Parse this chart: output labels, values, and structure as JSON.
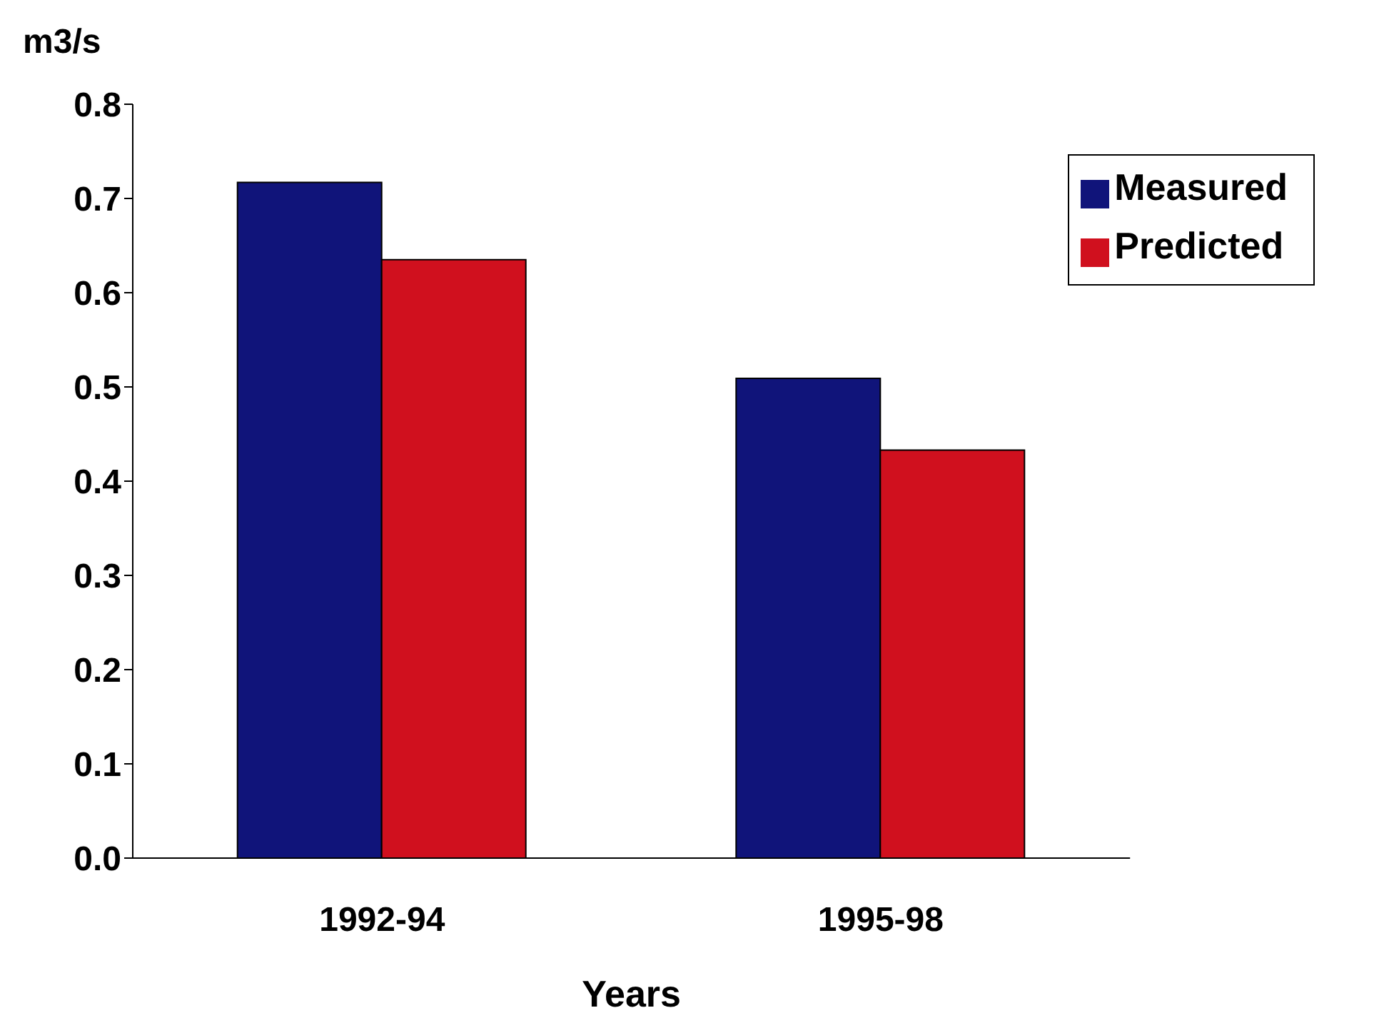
{
  "chart_data": {
    "type": "bar",
    "ylabel": "m3/s",
    "xlabel": "Years",
    "categories": [
      "1992-94",
      "1995-98"
    ],
    "series": [
      {
        "name": "Measured",
        "color": "#10147a",
        "values": [
          0.717,
          0.509
        ]
      },
      {
        "name": "Predicted",
        "color": "#d0101e",
        "values": [
          0.635,
          0.433
        ]
      }
    ],
    "ylim": [
      0,
      0.8
    ],
    "yticks": [
      {
        "value": 0,
        "label": "0.0"
      },
      0.1,
      0.2,
      0.3,
      0.4,
      0.5,
      0.6,
      0.7,
      0.8
    ],
    "grid": false,
    "legend": "top right"
  }
}
